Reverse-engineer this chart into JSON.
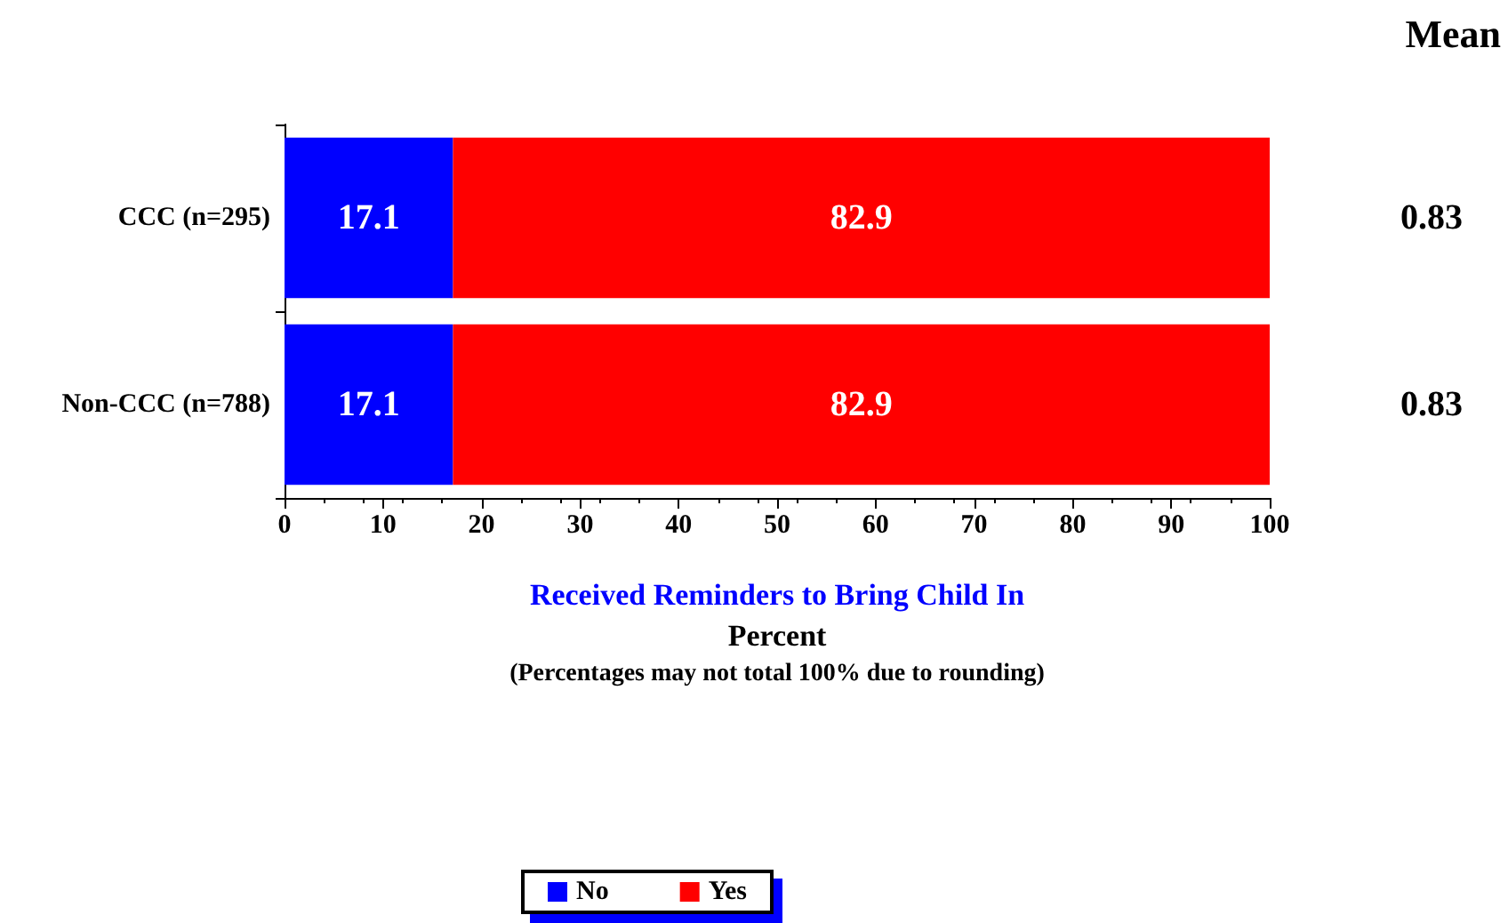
{
  "chart_data": {
    "type": "bar",
    "orientation": "horizontal",
    "stacked": true,
    "categories": [
      "CCC (n=295)",
      "Non-CCC (n=788)"
    ],
    "series": [
      {
        "name": "No",
        "color": "#0000ff",
        "values": [
          17.1,
          17.1
        ]
      },
      {
        "name": "Yes",
        "color": "#ff0000",
        "values": [
          82.9,
          82.9
        ]
      }
    ],
    "xlim": [
      0,
      100
    ],
    "xticks": [
      0,
      10,
      20,
      30,
      40,
      50,
      60,
      70,
      80,
      90,
      100
    ],
    "xlabel": "Percent",
    "title": "Received Reminders to Bring Child In",
    "annotations": [
      "Mean",
      "0.83",
      "0.83",
      "(Percentages may not total 100% due to rounding)"
    ],
    "data_labels": true,
    "legend": "bottom",
    "grid": false
  }
}
